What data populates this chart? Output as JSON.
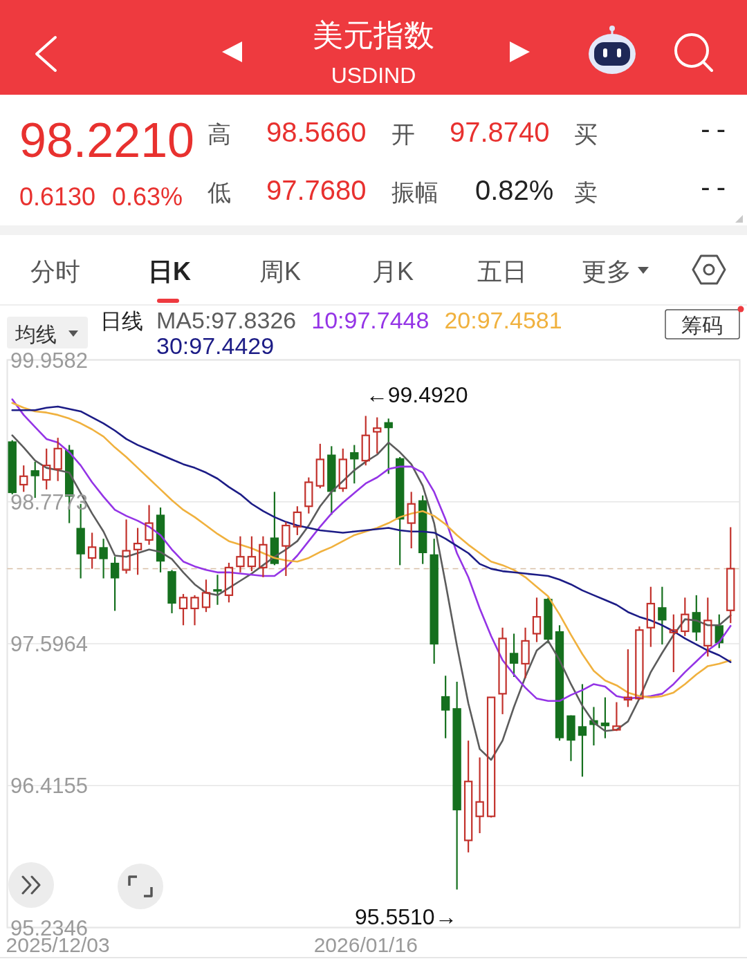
{
  "chart_data": {
    "type": "candlestick",
    "title": "美元指数",
    "subtitle": "USDIND",
    "categories": [
      null,
      null,
      null,
      null,
      "2025/12/03",
      null,
      null,
      null,
      null,
      null,
      null,
      null,
      null,
      null,
      null,
      null,
      null,
      null,
      null,
      null,
      null,
      null,
      null,
      null,
      null,
      null,
      null,
      null,
      null,
      null,
      null,
      "2026/01/16",
      null,
      null,
      null,
      null,
      null,
      null,
      null,
      null,
      null,
      null,
      null,
      null,
      null,
      null,
      null,
      null,
      null,
      null,
      null,
      null,
      null,
      null,
      null,
      null,
      null,
      null,
      null,
      null,
      null,
      null,
      null,
      null
    ],
    "ohlc": [
      [
        99.28,
        99.29,
        98.84,
        98.85
      ],
      [
        98.92,
        99.08,
        98.86,
        98.99
      ],
      [
        99.04,
        99.11,
        98.81,
        98.99
      ],
      [
        98.96,
        99.22,
        98.88,
        99.08
      ],
      [
        99.05,
        99.31,
        98.95,
        99.22
      ],
      [
        99.21,
        99.25,
        98.6,
        98.82
      ],
      [
        98.56,
        98.76,
        98.14,
        98.34
      ],
      [
        98.31,
        98.52,
        98.22,
        98.4
      ],
      [
        98.4,
        98.47,
        98.14,
        98.3
      ],
      [
        98.27,
        98.32,
        97.87,
        98.14
      ],
      [
        98.21,
        98.63,
        98.18,
        98.37
      ],
      [
        98.38,
        98.56,
        98.17,
        98.43
      ],
      [
        98.46,
        98.75,
        98.42,
        98.6
      ],
      [
        98.67,
        98.73,
        98.19,
        98.28
      ],
      [
        98.2,
        98.21,
        97.85,
        97.93
      ],
      [
        97.89,
        98.01,
        97.75,
        97.98
      ],
      [
        97.89,
        98.0,
        97.75,
        97.98
      ],
      [
        97.9,
        98.13,
        97.86,
        98.02
      ],
      [
        98.05,
        98.17,
        97.92,
        98.03
      ],
      [
        98.0,
        98.27,
        97.94,
        98.23
      ],
      [
        98.24,
        98.49,
        98.19,
        98.32
      ],
      [
        98.24,
        98.49,
        98.2,
        98.32
      ],
      [
        98.23,
        98.49,
        98.15,
        98.42
      ],
      [
        98.48,
        98.86,
        98.25,
        98.26
      ],
      [
        98.41,
        98.61,
        98.16,
        98.58
      ],
      [
        98.57,
        98.74,
        98.5,
        98.69
      ],
      [
        98.74,
        98.98,
        98.68,
        98.94
      ],
      [
        98.91,
        99.26,
        98.89,
        99.13
      ],
      [
        99.17,
        99.24,
        98.67,
        98.86
      ],
      [
        98.89,
        99.22,
        98.86,
        99.13
      ],
      [
        99.19,
        99.25,
        98.93,
        99.13
      ],
      [
        99.12,
        99.492,
        99.08,
        99.33
      ],
      [
        99.36,
        99.48,
        99.18,
        99.39
      ],
      [
        99.44,
        99.47,
        99.01,
        99.39
      ],
      [
        99.14,
        99.15,
        98.25,
        98.63
      ],
      [
        98.6,
        98.86,
        98.39,
        98.76
      ],
      [
        98.79,
        98.83,
        98.26,
        98.35
      ],
      [
        98.34,
        98.47,
        97.43,
        97.59
      ],
      [
        97.16,
        97.33,
        96.81,
        97.04
      ],
      [
        97.06,
        97.28,
        95.551,
        96.21
      ],
      [
        95.96,
        96.79,
        95.86,
        96.45
      ],
      [
        96.16,
        96.65,
        96.02,
        96.28
      ],
      [
        96.16,
        97.15,
        96.15,
        97.15
      ],
      [
        97.18,
        97.73,
        97.01,
        97.64
      ],
      [
        97.52,
        97.68,
        97.32,
        97.43
      ],
      [
        97.43,
        97.73,
        97.31,
        97.62
      ],
      [
        97.68,
        97.98,
        97.61,
        97.82
      ],
      [
        97.97,
        97.98,
        97.6,
        97.63
      ],
      [
        97.7,
        97.75,
        96.79,
        96.81
      ],
      [
        97.0,
        97.0,
        96.62,
        96.79
      ],
      [
        96.91,
        97.26,
        96.49,
        96.83
      ],
      [
        96.96,
        97.07,
        96.75,
        96.92
      ],
      [
        96.94,
        97.15,
        96.81,
        96.91
      ],
      [
        96.88,
        97.11,
        96.87,
        96.91
      ],
      [
        97.13,
        97.55,
        97.07,
        97.15
      ],
      [
        97.14,
        97.74,
        97.13,
        97.71
      ],
      [
        97.73,
        98.07,
        97.57,
        97.93
      ],
      [
        97.9,
        98.07,
        97.59,
        97.79
      ],
      [
        97.69,
        97.84,
        97.36,
        97.71
      ],
      [
        97.7,
        97.98,
        97.66,
        97.84
      ],
      [
        97.86,
        98.0,
        97.62,
        97.69
      ],
      [
        97.58,
        97.98,
        97.49,
        97.79
      ],
      [
        97.75,
        97.84,
        97.56,
        97.6
      ],
      [
        97.874,
        98.566,
        97.768,
        98.221
      ]
    ],
    "colors": [
      "#15701e",
      "#c2312b",
      "#15701e",
      "#c2312b",
      "#c2312b",
      "#15701e",
      "#15701e",
      "#c2312b",
      "#15701e",
      "#15701e",
      "#c2312b",
      "#c2312b",
      "#c2312b",
      "#15701e",
      "#15701e",
      "#c2312b",
      "#c2312b",
      "#c2312b",
      "#15701e",
      "#c2312b",
      "#c2312b",
      "#c2312b",
      "#c2312b",
      "#15701e",
      "#c2312b",
      "#c2312b",
      "#c2312b",
      "#c2312b",
      "#15701e",
      "#c2312b",
      "#15701e",
      "#c2312b",
      "#c2312b",
      "#15701e",
      "#15701e",
      "#c2312b",
      "#15701e",
      "#15701e",
      "#15701e",
      "#15701e",
      "#c2312b",
      "#c2312b",
      "#c2312b",
      "#c2312b",
      "#15701e",
      "#c2312b",
      "#c2312b",
      "#15701e",
      "#15701e",
      "#15701e",
      "#15701e",
      "#15701e",
      "#15701e",
      "#c2312b",
      "#c2312b",
      "#c2312b",
      "#c2312b",
      "#15701e",
      "#c2312b",
      "#c2312b",
      "#15701e",
      "#c2312b",
      "#15701e",
      "#c2312b"
    ],
    "series": [
      {
        "name": "MA5:97.8326",
        "type": "line",
        "color": "#5c5c5c",
        "values": [
          99.33,
          99.23,
          99.12,
          99.06,
          99.04,
          99.02,
          98.85,
          98.68,
          98.53,
          98.33,
          98.32,
          98.35,
          98.38,
          98.36,
          98.3,
          98.19,
          98.09,
          98.02,
          98.0,
          98.06,
          98.12,
          98.18,
          98.25,
          98.32,
          98.38,
          98.45,
          98.58,
          98.74,
          98.86,
          98.95,
          99.04,
          99.11,
          99.17,
          99.27,
          99.19,
          99.09,
          98.91,
          98.6,
          98.1,
          97.58,
          97.1,
          96.72,
          96.63,
          96.79,
          97.07,
          97.32,
          97.54,
          97.62,
          97.46,
          97.26,
          97.08,
          96.94,
          96.87,
          96.88,
          96.95,
          97.14,
          97.36,
          97.52,
          97.67,
          97.8,
          97.79,
          97.75,
          97.75,
          97.8326
        ]
      },
      {
        "name": "10:97.7448",
        "type": "line",
        "color": "#9434e6",
        "values": [
          99.63,
          99.5,
          99.4,
          99.3,
          99.27,
          99.19,
          99.08,
          98.94,
          98.82,
          98.71,
          98.66,
          98.62,
          98.57,
          98.5,
          98.38,
          98.28,
          98.24,
          98.21,
          98.19,
          98.19,
          98.18,
          98.17,
          98.16,
          98.16,
          98.23,
          98.33,
          98.45,
          98.57,
          98.68,
          98.77,
          98.85,
          98.93,
          98.98,
          99.05,
          99.07,
          99.07,
          99.02,
          98.86,
          98.63,
          98.35,
          98.15,
          97.89,
          97.66,
          97.46,
          97.34,
          97.23,
          97.14,
          97.12,
          97.12,
          97.17,
          97.21,
          97.26,
          97.24,
          97.16,
          97.14,
          97.15,
          97.16,
          97.18,
          97.26,
          97.36,
          97.45,
          97.54,
          97.61,
          97.7448
        ]
      },
      {
        "name": "20:97.4581",
        "type": "line",
        "color": "#f0b13e",
        "values": [
          99.6,
          99.56,
          99.53,
          99.52,
          99.5,
          99.47,
          99.43,
          99.38,
          99.32,
          99.23,
          99.15,
          99.06,
          98.97,
          98.88,
          98.79,
          98.71,
          98.65,
          98.58,
          98.51,
          98.45,
          98.42,
          98.39,
          98.35,
          98.31,
          98.29,
          98.28,
          98.31,
          98.36,
          98.4,
          98.45,
          98.5,
          98.53,
          98.56,
          98.6,
          98.65,
          98.68,
          98.7,
          98.66,
          98.59,
          98.5,
          98.42,
          98.35,
          98.28,
          98.25,
          98.21,
          98.15,
          98.07,
          97.99,
          97.84,
          97.67,
          97.51,
          97.37,
          97.29,
          97.25,
          97.19,
          97.16,
          97.15,
          97.16,
          97.19,
          97.26,
          97.34,
          97.41,
          97.43,
          97.4581
        ]
      },
      {
        "name": "30:97.4429",
        "type": "line",
        "color": "#1c1c86",
        "values": [
          99.54,
          99.54,
          99.54,
          99.56,
          99.57,
          99.55,
          99.53,
          99.48,
          99.43,
          99.37,
          99.3,
          99.25,
          99.21,
          99.17,
          99.13,
          99.09,
          99.06,
          99.02,
          98.97,
          98.9,
          98.84,
          98.76,
          98.7,
          98.65,
          98.61,
          98.58,
          98.56,
          98.54,
          98.53,
          98.52,
          98.53,
          98.54,
          98.55,
          98.56,
          98.54,
          98.53,
          98.53,
          98.52,
          98.47,
          98.41,
          98.35,
          98.26,
          98.22,
          98.2,
          98.19,
          98.18,
          98.17,
          98.16,
          98.13,
          98.09,
          98.04,
          98.0,
          97.96,
          97.92,
          97.86,
          97.82,
          97.79,
          97.75,
          97.7,
          97.64,
          97.59,
          97.54,
          97.5,
          97.4429
        ]
      }
    ],
    "ylim": [
      95.2346,
      99.9582
    ],
    "yticks": [
      99.9582,
      98.7773,
      97.5964,
      96.4155,
      95.2346
    ],
    "grid": "y",
    "ref_lines": [
      {
        "axis": "y",
        "value": 98.221,
        "color": "#d8bfa6",
        "line_style": "dashed"
      }
    ],
    "legend": "top left",
    "annotations": [
      "←99.4920",
      "95.5510→",
      "98.2210",
      "0.6130",
      "0.63%",
      "高",
      "98.5660",
      "开",
      "97.8740",
      "买",
      "--",
      "低",
      "97.7680",
      "振幅",
      "0.82%",
      "卖",
      "--",
      "分时",
      "日K",
      "周K",
      "月K",
      "五日",
      "更多",
      "均线",
      "日线",
      "筹码"
    ]
  }
}
